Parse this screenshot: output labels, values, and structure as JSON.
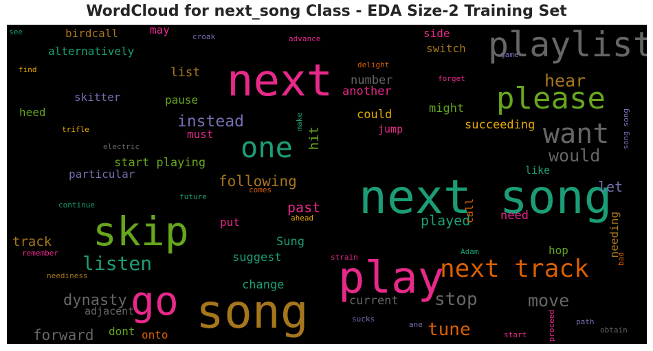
{
  "chart_data": {
    "type": "wordcloud",
    "title": "WordCloud for next_song Class - EDA Size-2 Training Set",
    "background": "#000000",
    "words": [
      {
        "text": "next song",
        "weight": 1.0,
        "color": "#1b9e77"
      },
      {
        "text": "song",
        "weight": 0.9,
        "color": "#a6761d"
      },
      {
        "text": "play",
        "weight": 0.85,
        "color": "#e7298a"
      },
      {
        "text": "next",
        "weight": 0.82,
        "color": "#e7298a"
      },
      {
        "text": "skip",
        "weight": 0.75,
        "color": "#66a61e"
      },
      {
        "text": "go",
        "weight": 0.7,
        "color": "#e7298a"
      },
      {
        "text": "playlist",
        "weight": 0.65,
        "color": "#666666"
      },
      {
        "text": "please",
        "weight": 0.6,
        "color": "#66a61e"
      },
      {
        "text": "next track",
        "weight": 0.58,
        "color": "#d95f02"
      },
      {
        "text": "one",
        "weight": 0.55,
        "color": "#1b9e77"
      },
      {
        "text": "want",
        "weight": 0.5,
        "color": "#666666"
      },
      {
        "text": "listen",
        "weight": 0.4,
        "color": "#1b9e77"
      },
      {
        "text": "tune",
        "weight": 0.38,
        "color": "#d95f02"
      },
      {
        "text": "stop",
        "weight": 0.38,
        "color": "#666666"
      },
      {
        "text": "move",
        "weight": 0.36,
        "color": "#666666"
      },
      {
        "text": "hear",
        "weight": 0.34,
        "color": "#a6761d"
      },
      {
        "text": "would",
        "weight": 0.34,
        "color": "#666666"
      },
      {
        "text": "instead",
        "weight": 0.33,
        "color": "#7570b3"
      },
      {
        "text": "dynasty",
        "weight": 0.32,
        "color": "#666666"
      },
      {
        "text": "forward",
        "weight": 0.3,
        "color": "#666666"
      },
      {
        "text": "following",
        "weight": 0.3,
        "color": "#a6761d"
      },
      {
        "text": "past",
        "weight": 0.29,
        "color": "#e7298a"
      },
      {
        "text": "played",
        "weight": 0.29,
        "color": "#1b9e77"
      },
      {
        "text": "track",
        "weight": 0.28,
        "color": "#a6761d"
      },
      {
        "text": "let",
        "weight": 0.28,
        "color": "#7570b3"
      },
      {
        "text": "succeeding",
        "weight": 0.26,
        "color": "#e6ab02"
      },
      {
        "text": "list",
        "weight": 0.27,
        "color": "#a6761d"
      },
      {
        "text": "hit",
        "weight": 0.26,
        "color": "#66a61e"
      },
      {
        "text": "start playing",
        "weight": 0.25,
        "color": "#66a61e"
      },
      {
        "text": "might",
        "weight": 0.25,
        "color": "#66a61e"
      },
      {
        "text": "suggest",
        "weight": 0.25,
        "color": "#1b9e77"
      },
      {
        "text": "change",
        "weight": 0.25,
        "color": "#1b9e77"
      },
      {
        "text": "Sung",
        "weight": 0.25,
        "color": "#1b9e77"
      },
      {
        "text": "current",
        "weight": 0.24,
        "color": "#666666"
      },
      {
        "text": "needing",
        "weight": 0.24,
        "color": "#a6761d"
      },
      {
        "text": "could",
        "weight": 0.24,
        "color": "#e6ab02"
      },
      {
        "text": "number",
        "weight": 0.23,
        "color": "#666666"
      },
      {
        "text": "another",
        "weight": 0.23,
        "color": "#e7298a"
      },
      {
        "text": "need",
        "weight": 0.23,
        "color": "#e7298a"
      },
      {
        "text": "must",
        "weight": 0.22,
        "color": "#e7298a"
      },
      {
        "text": "put",
        "weight": 0.22,
        "color": "#e7298a"
      },
      {
        "text": "particular",
        "weight": 0.22,
        "color": "#7570b3"
      },
      {
        "text": "dont",
        "weight": 0.22,
        "color": "#66a61e"
      },
      {
        "text": "onto",
        "weight": 0.22,
        "color": "#d95f02"
      },
      {
        "text": "switch",
        "weight": 0.22,
        "color": "#a6761d"
      },
      {
        "text": "side",
        "weight": 0.22,
        "color": "#e7298a"
      },
      {
        "text": "hop",
        "weight": 0.22,
        "color": "#66a61e"
      },
      {
        "text": "pause",
        "weight": 0.22,
        "color": "#66a61e"
      },
      {
        "text": "skitter",
        "weight": 0.22,
        "color": "#7570b3"
      },
      {
        "text": "heed",
        "weight": 0.22,
        "color": "#66a61e"
      },
      {
        "text": "alternatively",
        "weight": 0.22,
        "color": "#1b9e77"
      },
      {
        "text": "birdcall",
        "weight": 0.22,
        "color": "#a6761d"
      },
      {
        "text": "may",
        "weight": 0.22,
        "color": "#e7298a"
      },
      {
        "text": "adjacent",
        "weight": 0.2,
        "color": "#666666"
      },
      {
        "text": "jump",
        "weight": 0.2,
        "color": "#e7298a"
      },
      {
        "text": "like",
        "weight": 0.2,
        "color": "#1b9e77"
      },
      {
        "text": "call",
        "weight": 0.2,
        "color": "#d95f02"
      },
      {
        "text": "future",
        "weight": 0.14,
        "color": "#1b9e77"
      },
      {
        "text": "comes",
        "weight": 0.14,
        "color": "#d95f02"
      },
      {
        "text": "ahead",
        "weight": 0.14,
        "color": "#e6ab02"
      },
      {
        "text": "continue",
        "weight": 0.14,
        "color": "#1b9e77"
      },
      {
        "text": "remember",
        "weight": 0.14,
        "color": "#e7298a"
      },
      {
        "text": "neediness",
        "weight": 0.14,
        "color": "#a6761d"
      },
      {
        "text": "strain",
        "weight": 0.14,
        "color": "#e7298a"
      },
      {
        "text": "Adam",
        "weight": 0.14,
        "color": "#1b9e77"
      },
      {
        "text": "bad",
        "weight": 0.14,
        "color": "#d95f02"
      },
      {
        "text": "sucks",
        "weight": 0.14,
        "color": "#7570b3"
      },
      {
        "text": "ane",
        "weight": 0.14,
        "color": "#7570b3"
      },
      {
        "text": "start",
        "weight": 0.14,
        "color": "#e7298a"
      },
      {
        "text": "proceed",
        "weight": 0.14,
        "color": "#e7298a"
      },
      {
        "text": "path",
        "weight": 0.14,
        "color": "#7570b3"
      },
      {
        "text": "obtain",
        "weight": 0.14,
        "color": "#666666"
      },
      {
        "text": "see",
        "weight": 0.14,
        "color": "#1b9e77"
      },
      {
        "text": "croak",
        "weight": 0.14,
        "color": "#7570b3"
      },
      {
        "text": "advance",
        "weight": 0.14,
        "color": "#e7298a"
      },
      {
        "text": "delight",
        "weight": 0.14,
        "color": "#d95f02"
      },
      {
        "text": "forget",
        "weight": 0.14,
        "color": "#e7298a"
      },
      {
        "text": "game",
        "weight": 0.14,
        "color": "#7570b3"
      },
      {
        "text": "find",
        "weight": 0.14,
        "color": "#e6ab02"
      },
      {
        "text": "trifle",
        "weight": 0.14,
        "color": "#e6ab02"
      },
      {
        "text": "make",
        "weight": 0.14,
        "color": "#1b9e77"
      },
      {
        "text": "electric",
        "weight": 0.14,
        "color": "#666666"
      },
      {
        "text": "song song",
        "weight": 0.14,
        "color": "#7570b3"
      }
    ]
  }
}
